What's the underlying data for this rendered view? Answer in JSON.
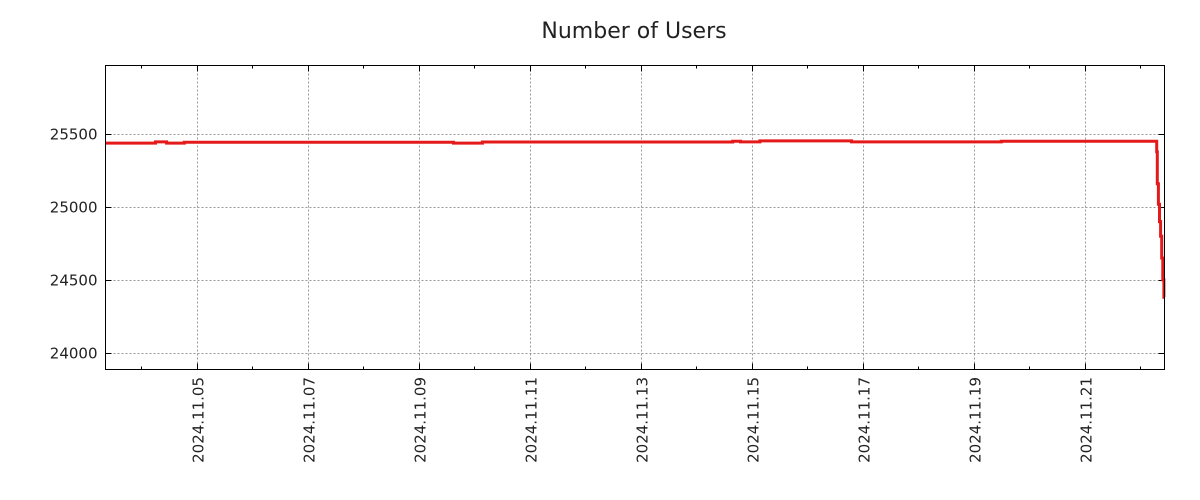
{
  "chart_data": {
    "type": "line",
    "title": "Number of Users",
    "xlabel": "",
    "ylabel": "",
    "x_unit": "days since 2024-11-00 (day of November 2024)",
    "xlim": [
      3.36,
      22.44
    ],
    "ylim": [
      23884,
      25973
    ],
    "grid": true,
    "line_color": "#e41a1a",
    "yticks": [
      24000,
      24500,
      25000,
      25500
    ],
    "xticks": [
      {
        "value": 5,
        "label": "2024.11.05"
      },
      {
        "value": 7,
        "label": "2024.11.07"
      },
      {
        "value": 9,
        "label": "2024.11.09"
      },
      {
        "value": 11,
        "label": "2024.11.11"
      },
      {
        "value": 13,
        "label": "2024.11.13"
      },
      {
        "value": 15,
        "label": "2024.11.15"
      },
      {
        "value": 17,
        "label": "2024.11.17"
      },
      {
        "value": 19,
        "label": "2024.11.19"
      },
      {
        "value": 21,
        "label": "2024.11.21"
      }
    ],
    "series": [
      {
        "name": "Number of Users",
        "points": [
          [
            3.36,
            25440
          ],
          [
            4.26,
            25448
          ],
          [
            4.46,
            25440
          ],
          [
            4.78,
            25445
          ],
          [
            9.63,
            25440
          ],
          [
            10.15,
            25447
          ],
          [
            14.66,
            25452
          ],
          [
            14.8,
            25448
          ],
          [
            15.15,
            25455
          ],
          [
            16.8,
            25448
          ],
          [
            19.5,
            25453
          ],
          [
            22.28,
            25453
          ],
          [
            22.3,
            25380
          ],
          [
            22.31,
            25160
          ],
          [
            22.33,
            25020
          ],
          [
            22.35,
            24900
          ],
          [
            22.37,
            24800
          ],
          [
            22.39,
            24650
          ],
          [
            22.41,
            24500
          ],
          [
            22.43,
            24380
          ]
        ]
      }
    ]
  }
}
